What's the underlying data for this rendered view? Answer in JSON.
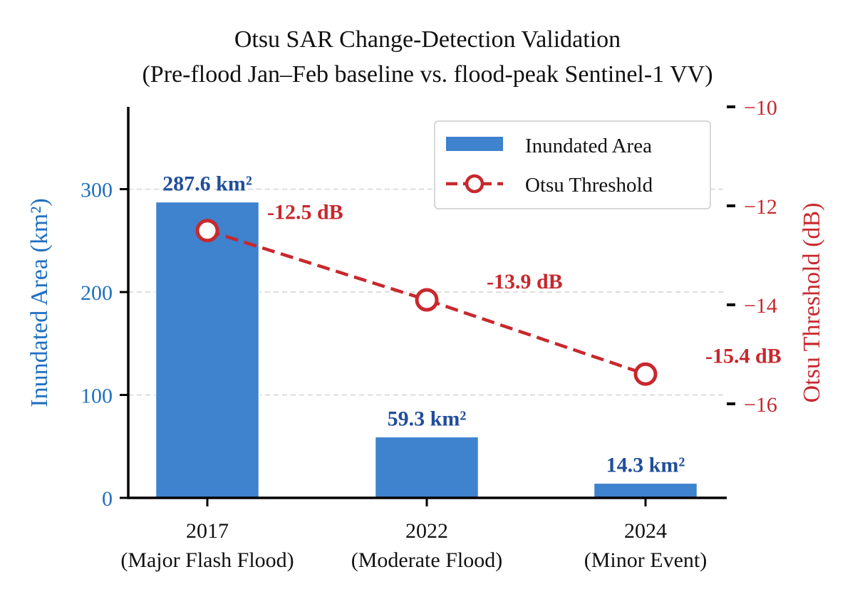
{
  "colors": {
    "bar": "#3f82cd",
    "bar_edge": "#ffffff",
    "bar_label": "#1f4e9a",
    "left_axis": "#1f6fc2",
    "line": "#c8282d",
    "right_axis": "#c8282d",
    "grid": "#dddddd",
    "text": "#111111"
  },
  "chart_data": {
    "type": "bar",
    "title": "Otsu SAR Change-Detection Validation",
    "subtitle": "(Pre-flood Jan–Feb baseline vs. flood-peak Sentinel-1 VV)",
    "categories": [
      [
        "2017",
        "(Major Flash Flood)"
      ],
      [
        "2022",
        "(Moderate Flood)"
      ],
      [
        "2024",
        "(Minor Event)"
      ]
    ],
    "ylabel": "Inundated Area (km²)",
    "ylabel_right": "Otsu Threshold (dB)",
    "ylim": [
      0,
      380
    ],
    "yticks": [
      0,
      100,
      200,
      300
    ],
    "ylim_right": [
      -17.9,
      -10
    ],
    "yticks_right": [
      -10,
      -12,
      -14,
      -16
    ],
    "yticks_right_labels": [
      "−10",
      "−12",
      "−14",
      "−16"
    ],
    "grid": "horizontal dashed",
    "series": [
      {
        "name": "Inundated Area",
        "type": "bar",
        "axis": "left",
        "values": [
          287.6,
          59.3,
          14.3
        ],
        "labels": [
          "287.6 km²",
          "59.3 km²",
          "14.3 km²"
        ]
      },
      {
        "name": "Otsu Threshold",
        "type": "line",
        "axis": "right",
        "style": "dashed with open circle markers",
        "values": [
          -12.5,
          -13.9,
          -15.4
        ],
        "labels": [
          "-12.5 dB",
          "-13.9 dB",
          "-15.4 dB"
        ]
      }
    ],
    "legend": {
      "placement": "top-right"
    }
  }
}
